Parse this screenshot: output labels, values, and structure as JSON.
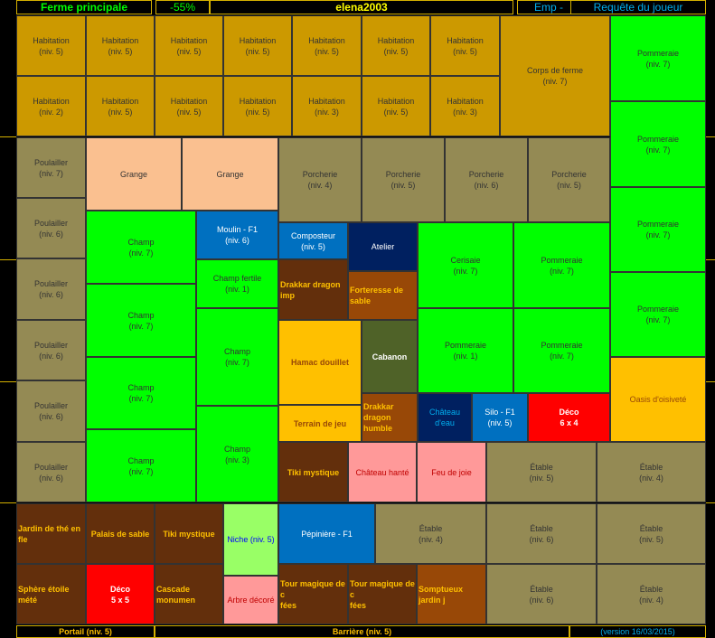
{
  "header": {
    "farm": "Ferme principale",
    "percent": "-55%",
    "player": "elena2003",
    "emp": "Emp -",
    "request": "Requête du joueur"
  },
  "footer": {
    "portal": "Portail (niv. 5)",
    "barrier": "Barrière (niv. 5)",
    "version": "(version 16/03/2015)"
  },
  "cells": {
    "hab1": "Habitation\n(niv. 5)",
    "hab2": "Habitation\n(niv. 5)",
    "hab3": "Habitation\n(niv. 5)",
    "hab4": "Habitation\n(niv. 5)",
    "hab5": "Habitation\n(niv. 5)",
    "hab6": "Habitation\n(niv. 5)",
    "hab7": "Habitation\n(niv. 5)",
    "hab8": "Habitation\n(niv. 2)",
    "hab9": "Habitation\n(niv. 5)",
    "hab10": "Habitation\n(niv. 5)",
    "hab11": "Habitation\n(niv. 5)",
    "hab12": "Habitation\n(niv. 3)",
    "hab13": "Habitation\n(niv. 5)",
    "hab14": "Habitation\n(niv. 3)",
    "corps": "Corps de ferme\n(niv. 7)",
    "pom1": "Pommeraie\n(niv. 7)",
    "pom2": "Pommeraie\n(niv. 7)",
    "pom3": "Pommeraie\n(niv. 7)",
    "pom4": "Pommeraie\n(niv. 7)",
    "oasis": "Oasis d'oisiveté",
    "poul1": "Poulailler\n(niv. 7)",
    "poul2": "Poulailler\n(niv. 6)",
    "poul3": "Poulailler\n(niv. 6)",
    "poul4": "Poulailler\n(niv. 6)",
    "poul5": "Poulailler\n(niv. 6)",
    "poul6": "Poulailler\n(niv. 6)",
    "grange1": "Grange",
    "grange2": "Grange",
    "porc1": "Porcherie\n(niv. 4)",
    "porc2": "Porcherie\n(niv. 5)",
    "porc3": "Porcherie\n(niv. 6)",
    "porc4": "Porcherie\n(niv. 5)",
    "champ1": "Champ\n(niv. 7)",
    "champ2": "Champ\n(niv. 7)",
    "champ3": "Champ\n(niv. 7)",
    "champ4": "Champ\n(niv. 7)",
    "moulin": "Moulin - F1\n(niv. 6)",
    "champfert": "Champ fertile\n(niv. 1)",
    "champ5": "Champ\n(niv. 7)",
    "champ6": "Champ\n(niv. 3)",
    "compost": "Composteur\n(niv. 5)",
    "atelier": "Atelier",
    "drakkar": "Drakkar dragon imp",
    "forteresse": "Forteresse de sable",
    "hamac": "Hamac douillet",
    "cabanon": "Cabanon",
    "terrain": "Terrain de jeu",
    "drakkar2": "Drakkar dragon\nhumble",
    "cerisaie": "Cerisaie\n(niv. 7)",
    "pom5": "Pommeraie\n(niv. 7)",
    "pom6": "Pommeraie\n(niv. 1)",
    "pom7": "Pommeraie\n(niv. 7)",
    "chateau": "Château d'eau",
    "silo": "Silo - F1\n(niv. 5)",
    "deco64": "Déco\n6 x 4",
    "tiki1": "Tiki mystique",
    "hante": "Château hanté",
    "feu": "Feu de joie",
    "etab1": "Étable\n(niv. 5)",
    "etab2": "Étable\n(niv. 4)",
    "jardin": "Jardin de thé en fle",
    "palais": "Palais de sable",
    "tiki2": "Tiki mystique",
    "niche": "Niche (niv. 5)",
    "pepin": "Pépinière - F1",
    "etab3": "Étable\n(niv. 4)",
    "etab4": "Étable\n(niv. 6)",
    "etab5": "Étable\n(niv. 5)",
    "sphere": "Sphère étoile mété",
    "deco55": "Déco\n5 x 5",
    "cascade": "Cascade monumen",
    "arbre": "Arbre décoré",
    "tour1": "Tour magique de c\nfées",
    "tour2": "Tour magique de c\nfées",
    "somptueux": "Somptueux jardin j",
    "etab6": "Étable\n(niv. 6)",
    "etab7": "Étable\n(niv. 4)"
  }
}
